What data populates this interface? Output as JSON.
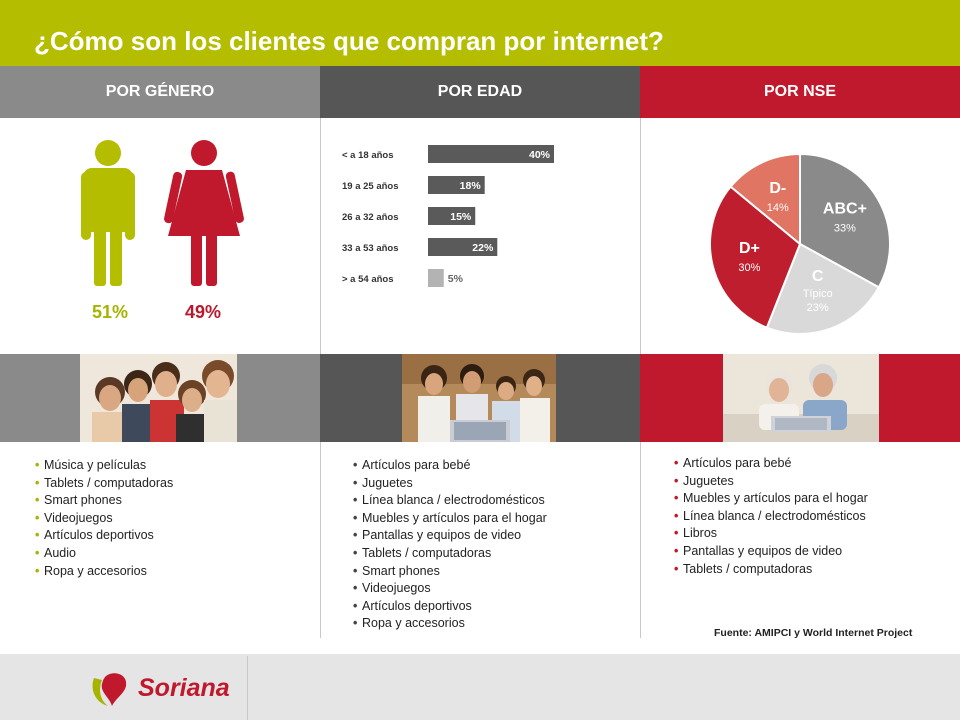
{
  "title": "¿Cómo son los clientes que compran por internet?",
  "headers": {
    "genero": "POR GÉNERO",
    "edad": "POR EDAD",
    "nse": "POR NSE"
  },
  "colors": {
    "accent_green": "#b4bd00",
    "accent_red": "#c0182c",
    "grey_light": "#8a8a8a",
    "grey_dark": "#565656"
  },
  "gender": {
    "male_pct": "51%",
    "female_pct": "49%"
  },
  "chart_data": [
    {
      "type": "bar",
      "orientation": "horizontal",
      "categories": [
        "< a 18 años",
        "19 a 25 años",
        "26 a 32 años",
        "33 a 53 años",
        "> a 54 años"
      ],
      "values": [
        40,
        18,
        15,
        22,
        5
      ],
      "labels": [
        "40%",
        "18%",
        "15%",
        "22%",
        "5%"
      ],
      "xlim": [
        0,
        100
      ]
    },
    {
      "type": "pie",
      "slices": [
        {
          "label": "ABC+",
          "sublabel": "",
          "value": 33,
          "display": "33%",
          "color": "#8a8a8a"
        },
        {
          "label": "C",
          "sublabel": "Típico",
          "value": 23,
          "display": "23%",
          "color": "#d9d9d9"
        },
        {
          "label": "D+",
          "sublabel": "",
          "value": 30,
          "display": "30%",
          "color": "#be1e2d"
        },
        {
          "label": "D-",
          "sublabel": "",
          "value": 14,
          "display": "14%",
          "color": "#e07563"
        }
      ]
    }
  ],
  "lists": {
    "genero": [
      "Música y películas",
      "Tablets / computadoras",
      "Smart phones",
      "Videojuegos",
      "Artículos deportivos",
      "Audio",
      "Ropa y accesorios"
    ],
    "edad": [
      "Artículos para bebé",
      "Juguetes",
      "Línea blanca / electrodomésticos",
      "Muebles y artículos para el hogar",
      "Pantallas y equipos de video",
      "Tablets / computadoras",
      "Smart phones",
      "Videojuegos",
      "Artículos deportivos",
      "Ropa y accesorios"
    ],
    "nse": [
      "Artículos para bebé",
      "Juguetes",
      "Muebles y artículos para el hogar",
      "Línea blanca / electrodomésticos",
      "Libros",
      "Pantallas y equipos de video",
      "Tablets / computadoras"
    ]
  },
  "source": "Fuente: AMIPCI y World Internet Project",
  "brand": "Soriana"
}
